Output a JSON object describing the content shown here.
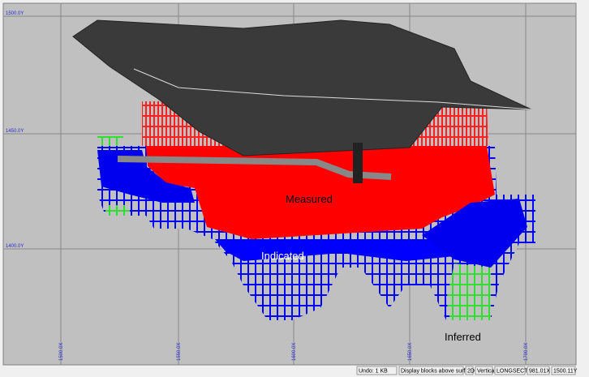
{
  "grid": {
    "y_labels": [
      "1500.0Y",
      "1450.0Y",
      "1400.0Y"
    ],
    "x_labels": [
      "1500.0X",
      "1550.0X",
      "1600.0X",
      "1650.0X",
      "1700.0X"
    ]
  },
  "labels": {
    "measured": "Measured",
    "indicated": "Indicated",
    "inferred": "Inferred"
  },
  "status_bar": [
    "Undo: 1 KB",
    "Display blocks above surface",
    "2D",
    "Vertical",
    "LONGSECT",
    "981.01X",
    "1500.11Y"
  ]
}
